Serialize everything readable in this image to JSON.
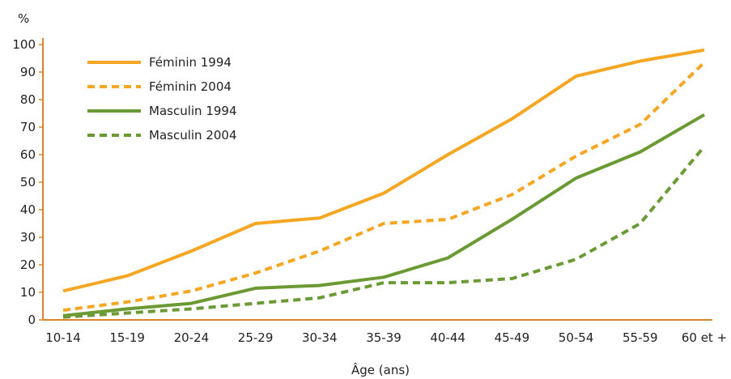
{
  "chart_data": {
    "type": "line",
    "ylabel": "%",
    "xlabel": "Âge (ans)",
    "categories": [
      "10-14",
      "15-19",
      "20-24",
      "25-29",
      "30-34",
      "35-39",
      "40-44",
      "45-49",
      "50-54",
      "55-59",
      "60 et +"
    ],
    "ylim": [
      0,
      100
    ],
    "yticks": [
      0,
      10,
      20,
      30,
      40,
      50,
      60,
      70,
      80,
      90,
      100
    ],
    "grid": false,
    "legend_position": "top-left",
    "axis_color": "#d9862a",
    "series": [
      {
        "name": "Féminin 1994",
        "color": "#f5a623",
        "dash": "solid",
        "values": [
          10.5,
          16,
          25,
          35,
          37,
          46,
          60,
          73,
          88.5,
          94,
          98
        ]
      },
      {
        "name": "Féminin 2004",
        "color": "#f5a623",
        "dash": "dashed",
        "values": [
          3.5,
          6.5,
          10.5,
          17,
          25,
          35,
          36.5,
          45.5,
          59.5,
          71,
          93.5
        ]
      },
      {
        "name": "Masculin 1994",
        "color": "#6b9a34",
        "dash": "solid",
        "values": [
          1.5,
          4,
          6,
          11.5,
          12.5,
          15.5,
          22.5,
          36.5,
          51.5,
          61,
          74.5
        ]
      },
      {
        "name": "Masculin 2004",
        "color": "#6b9a34",
        "dash": "dashed",
        "values": [
          1,
          2.5,
          4,
          6,
          8,
          13.5,
          13.5,
          15,
          22,
          35,
          63
        ]
      }
    ]
  }
}
